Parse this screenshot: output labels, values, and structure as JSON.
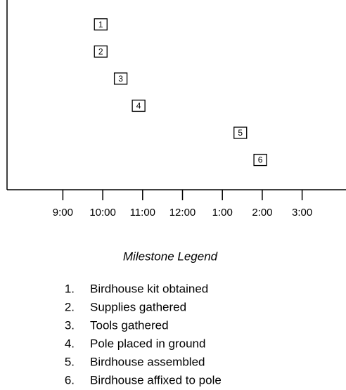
{
  "chart_data": {
    "type": "scatter",
    "x": [
      9.95,
      9.95,
      10.45,
      10.9,
      13.45,
      13.95
    ],
    "values": [
      1,
      2,
      3,
      4,
      5,
      6
    ],
    "value_labels": [
      "1",
      "2",
      "3",
      "4",
      "5",
      "6"
    ],
    "xlim": [
      7.6,
      16.1
    ],
    "xticks": [
      {
        "value": 9,
        "label": "9:00"
      },
      {
        "value": 10,
        "label": "10:00"
      },
      {
        "value": 11,
        "label": "11:00"
      },
      {
        "value": 12,
        "label": "12:00"
      },
      {
        "value": 13,
        "label": "1:00"
      },
      {
        "value": 14,
        "label": "2:00"
      },
      {
        "value": 15,
        "label": "3:00"
      }
    ],
    "ylim": [
      7.1,
      0.1
    ],
    "legend_title": "Milestone Legend",
    "legend_numbers": [
      "1.",
      "2.",
      "3.",
      "4.",
      "5.",
      "6."
    ],
    "legend_items": [
      "Birdhouse kit obtained",
      "Supplies gathered",
      "Tools gathered",
      "Pole placed in ground",
      "Birdhouse assembled",
      "Birdhouse affixed to pole"
    ]
  }
}
